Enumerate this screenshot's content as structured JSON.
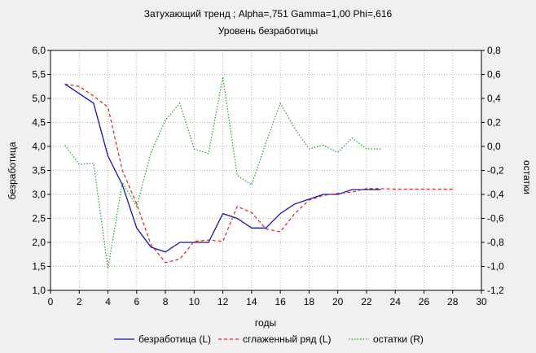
{
  "chart_data": {
    "type": "line",
    "title": "Затухающий тренд ; Alpha=,751 Gamma=1,00 Phi=,616",
    "subtitle": "Уровень безработицы",
    "xlabel": "годы",
    "ylabel_left": "безработица",
    "ylabel_right": "остатки",
    "xlim": [
      0,
      30
    ],
    "ylim_left": [
      1.0,
      6.0
    ],
    "ylim_right": [
      -1.2,
      0.8
    ],
    "grid": true,
    "legend_position": "bottom",
    "x_ticks": [
      "0",
      "2",
      "4",
      "6",
      "8",
      "10",
      "12",
      "14",
      "16",
      "18",
      "20",
      "22",
      "24",
      "26",
      "28",
      "30"
    ],
    "y_left_ticks": [
      "1,0",
      "1,5",
      "2,0",
      "2,5",
      "3,0",
      "3,5",
      "4,0",
      "4,5",
      "5,0",
      "5,5",
      "6,0"
    ],
    "y_right_ticks": [
      "-1,2",
      "-1,0",
      "-0,8",
      "-0,6",
      "-0,4",
      "-0,2",
      "0,0",
      "0,2",
      "0,4",
      "0,6",
      "0,8"
    ],
    "series": [
      {
        "name": "безработица (L)",
        "axis": "left",
        "color": "#1414b4",
        "style": "solid",
        "x": [
          1,
          2,
          3,
          4,
          5,
          6,
          7,
          8,
          9,
          10,
          11,
          12,
          13,
          14,
          15,
          16,
          17,
          18,
          19,
          20,
          21,
          22,
          23
        ],
        "y": [
          5.3,
          5.1,
          4.9,
          3.8,
          3.2,
          2.3,
          1.9,
          1.8,
          2.0,
          2.0,
          2.0,
          2.6,
          2.5,
          2.3,
          2.3,
          2.6,
          2.8,
          2.9,
          3.0,
          3.0,
          3.1,
          3.1,
          3.1
        ]
      },
      {
        "name": "сглаженный ряд (L)",
        "axis": "left",
        "color": "#e02020",
        "style": "dashed",
        "x": [
          1,
          2,
          3,
          4,
          5,
          6,
          7,
          8,
          9,
          10,
          11,
          12,
          13,
          14,
          15,
          16,
          17,
          18,
          19,
          20,
          21,
          22,
          23,
          24,
          25,
          26,
          27,
          28
        ],
        "y": [
          5.3,
          5.25,
          5.05,
          4.82,
          3.5,
          2.8,
          1.95,
          1.58,
          1.65,
          2.02,
          2.05,
          2.02,
          2.75,
          2.62,
          2.28,
          2.22,
          2.6,
          2.88,
          2.98,
          3.02,
          3.05,
          3.12,
          3.12,
          3.11,
          3.11,
          3.11,
          3.11,
          3.11
        ]
      },
      {
        "name": "остатки (R)",
        "axis": "right",
        "color": "#20a020",
        "style": "dotted",
        "x": [
          1,
          2,
          3,
          4,
          5,
          6,
          7,
          8,
          9,
          10,
          11,
          12,
          13,
          14,
          15,
          16,
          17,
          18,
          19,
          20,
          21,
          22,
          23
        ],
        "y": [
          0.01,
          -0.15,
          -0.14,
          -1.02,
          -0.3,
          -0.5,
          -0.05,
          0.22,
          0.36,
          -0.02,
          -0.06,
          0.58,
          -0.24,
          -0.32,
          0.03,
          0.36,
          0.15,
          -0.02,
          0.01,
          -0.05,
          0.07,
          -0.02,
          -0.02
        ]
      }
    ]
  }
}
